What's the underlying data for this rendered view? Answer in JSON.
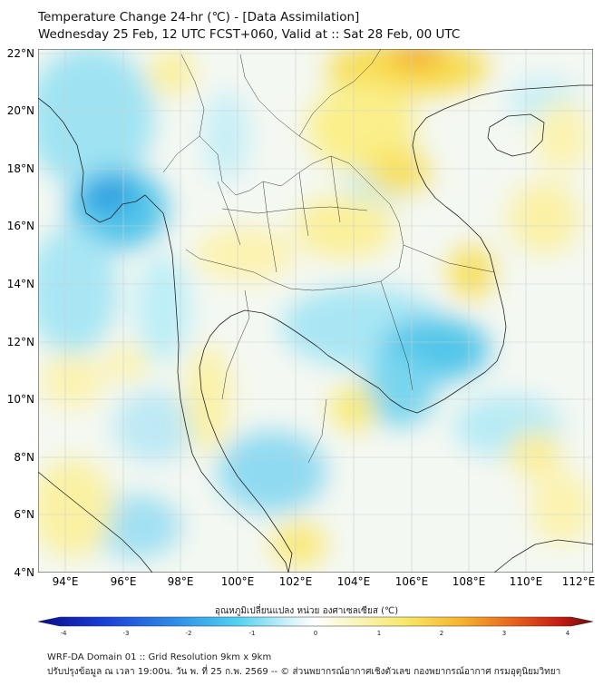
{
  "header": {
    "title_line1": "Temperature Change 24-hr (℃) - [Data Assimilation]",
    "title_line2": "Wednesday 25 Feb, 12 UTC FCST+060, Valid at :: Sat 28 Feb, 00 UTC"
  },
  "map": {
    "lat_labels": [
      "22°N",
      "20°N",
      "18°N",
      "16°N",
      "14°N",
      "12°N",
      "10°N",
      "8°N",
      "6°N",
      "4°N"
    ],
    "lon_labels": [
      "94°E",
      "96°E",
      "98°E",
      "100°E",
      "102°E",
      "104°E",
      "106°E",
      "108°E",
      "110°E",
      "112°E"
    ]
  },
  "colorbar": {
    "title": "อุณหภูมิเปลี่ยนแปลง หน่วย องศาเซลเซียส (℃)",
    "ticks": [
      "-4",
      "-3",
      "-2",
      "-1",
      "0",
      "1",
      "2",
      "3",
      "4"
    ],
    "range": [
      -4,
      4
    ],
    "colors": [
      "#0a0a8c",
      "#1a3fd6",
      "#2f8fe8",
      "#4fd3f2",
      "#d9f4fb",
      "#ffffff",
      "#fbf6c8",
      "#f8e86a",
      "#f6b52c",
      "#e8601c",
      "#c41a12",
      "#6e0a08"
    ]
  },
  "footer": {
    "line1": "WRF-DA Domain 01 :: Grid Resolution 9km x 9km",
    "line2": "ปรับปรุงข้อมูล ณ เวลา 19:00น. วัน พ. ที่ 25 ก.พ. 2569 -- © ส่วนพยากรณ์อากาศเชิงตัวเลข กองพยากรณ์อากาศ กรมอุตุนิยมวิทยา"
  }
}
